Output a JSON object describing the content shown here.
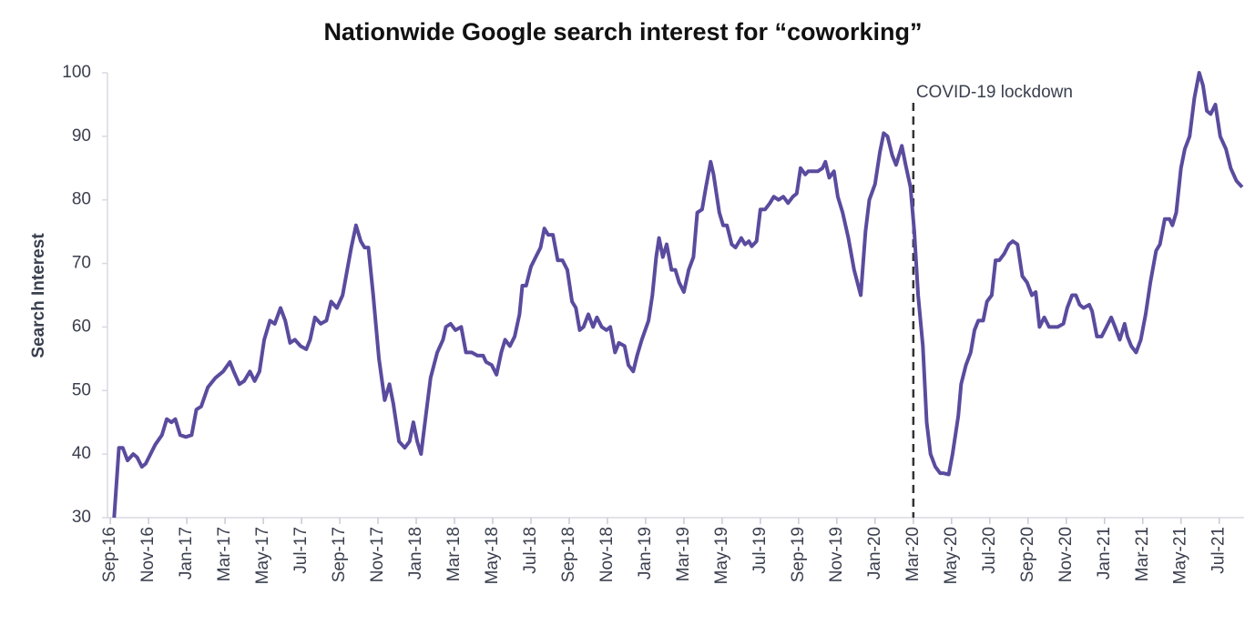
{
  "chart_data": {
    "type": "line",
    "title": "Nationwide Google search interest for “coworking”",
    "ylabel": "Search Interest",
    "annotation": {
      "text": "COVID-19 lockdown",
      "x": 42
    },
    "xlim": [
      -0.15,
      59.3
    ],
    "xticks": [
      {
        "value": 0,
        "label": "Sep-16"
      },
      {
        "value": 2,
        "label": "Nov-16"
      },
      {
        "value": 4,
        "label": "Jan-17"
      },
      {
        "value": 6,
        "label": "Mar-17"
      },
      {
        "value": 8,
        "label": "May-17"
      },
      {
        "value": 10,
        "label": "Jul-17"
      },
      {
        "value": 12,
        "label": "Sep-17"
      },
      {
        "value": 14,
        "label": "Nov-17"
      },
      {
        "value": 16,
        "label": "Jan-18"
      },
      {
        "value": 18,
        "label": "Mar-18"
      },
      {
        "value": 20,
        "label": "May-18"
      },
      {
        "value": 22,
        "label": "Jul-18"
      },
      {
        "value": 24,
        "label": "Sep-18"
      },
      {
        "value": 26,
        "label": "Nov-18"
      },
      {
        "value": 28,
        "label": "Jan-19"
      },
      {
        "value": 30,
        "label": "Mar-19"
      },
      {
        "value": 32,
        "label": "May-19"
      },
      {
        "value": 34,
        "label": "Jul-19"
      },
      {
        "value": 36,
        "label": "Sep-19"
      },
      {
        "value": 38,
        "label": "Nov-19"
      },
      {
        "value": 40,
        "label": "Jan-20"
      },
      {
        "value": 42,
        "label": "Mar-20"
      },
      {
        "value": 44,
        "label": "May-20"
      },
      {
        "value": 46,
        "label": "Jul-20"
      },
      {
        "value": 48,
        "label": "Sep-20"
      },
      {
        "value": 50,
        "label": "Nov-20"
      },
      {
        "value": 52,
        "label": "Jan-21"
      },
      {
        "value": 54,
        "label": "Mar-21"
      },
      {
        "value": 56,
        "label": "May-21"
      },
      {
        "value": 58,
        "label": "Jul-21"
      }
    ],
    "ylim": [
      30,
      100
    ],
    "yticks": [
      30,
      40,
      50,
      60,
      70,
      80,
      90,
      100
    ],
    "x": [
      0.2,
      0.45,
      0.65,
      0.9,
      1.2,
      1.4,
      1.65,
      1.85,
      2.35,
      2.7,
      2.95,
      3.2,
      3.4,
      3.65,
      3.95,
      4.25,
      4.5,
      4.75,
      5.1,
      5.5,
      5.9,
      6.25,
      6.45,
      6.75,
      7.0,
      7.3,
      7.55,
      7.8,
      8.05,
      8.35,
      8.6,
      8.9,
      9.15,
      9.4,
      9.65,
      9.95,
      10.25,
      10.45,
      10.7,
      11.0,
      11.3,
      11.55,
      11.85,
      12.15,
      12.45,
      12.6,
      12.85,
      13.1,
      13.3,
      13.5,
      13.75,
      14.05,
      14.35,
      14.6,
      14.8,
      15.1,
      15.4,
      15.65,
      15.85,
      16.05,
      16.25,
      16.5,
      16.75,
      17.1,
      17.4,
      17.55,
      17.8,
      18.05,
      18.35,
      18.6,
      18.9,
      19.2,
      19.5,
      19.65,
      19.95,
      20.2,
      20.45,
      20.65,
      20.9,
      21.15,
      21.4,
      21.55,
      21.75,
      22.0,
      22.25,
      22.5,
      22.7,
      22.9,
      23.15,
      23.4,
      23.65,
      23.9,
      24.15,
      24.35,
      24.55,
      24.75,
      25.0,
      25.25,
      25.45,
      25.7,
      25.95,
      26.15,
      26.4,
      26.6,
      26.9,
      27.1,
      27.35,
      27.55,
      27.8,
      28.15,
      28.35,
      28.55,
      28.7,
      28.9,
      29.1,
      29.35,
      29.55,
      29.75,
      30.0,
      30.25,
      30.5,
      30.7,
      30.95,
      31.15,
      31.4,
      31.55,
      31.85,
      32.05,
      32.25,
      32.5,
      32.7,
      33.0,
      33.2,
      33.4,
      33.55,
      33.8,
      34.0,
      34.25,
      34.5,
      34.7,
      34.95,
      35.2,
      35.45,
      35.7,
      35.9,
      36.1,
      36.35,
      36.5,
      36.75,
      37.0,
      37.25,
      37.4,
      37.6,
      37.85,
      38.05,
      38.3,
      38.6,
      38.9,
      39.25,
      39.5,
      39.7,
      40.0,
      40.25,
      40.45,
      40.65,
      40.9,
      41.1,
      41.4,
      41.6,
      41.85,
      42.05,
      42.25,
      42.5,
      42.7,
      42.9,
      43.15,
      43.4,
      43.55,
      43.85,
      44.05,
      44.35,
      44.5,
      44.75,
      45.0,
      45.2,
      45.4,
      45.65,
      45.85,
      46.1,
      46.3,
      46.5,
      46.75,
      47.0,
      47.2,
      47.45,
      47.7,
      47.95,
      48.2,
      48.4,
      48.6,
      48.85,
      49.1,
      49.4,
      49.55,
      49.85,
      50.05,
      50.3,
      50.5,
      50.7,
      50.9,
      51.2,
      51.35,
      51.6,
      51.85,
      52.1,
      52.35,
      52.55,
      52.8,
      53.05,
      53.2,
      53.4,
      53.65,
      53.9,
      54.15,
      54.4,
      54.7,
      54.9,
      55.15,
      55.4,
      55.55,
      55.75,
      56.0,
      56.2,
      56.45,
      56.7,
      56.95,
      57.15,
      57.35,
      57.55,
      57.8,
      58.05,
      58.35,
      58.6,
      58.9,
      59.2
    ],
    "series": [
      {
        "name": "coworking",
        "color": "#5b4b9e",
        "values": [
          30,
          41,
          41,
          39,
          40,
          39.5,
          38,
          38.5,
          41.5,
          43,
          45.5,
          45,
          45.5,
          43,
          42.7,
          43,
          47,
          47.5,
          50.5,
          52,
          53,
          54.5,
          53,
          51,
          51.5,
          53,
          51.5,
          53,
          58,
          61,
          60.5,
          63,
          61,
          57.5,
          58,
          57,
          56.5,
          58,
          61.5,
          60.5,
          61,
          64,
          63,
          65,
          70,
          72.5,
          76,
          73.5,
          72.5,
          72.5,
          65,
          55,
          48.5,
          51,
          48,
          42,
          41,
          42,
          45,
          42,
          40,
          46,
          52,
          56,
          58,
          60,
          60.5,
          59.5,
          60,
          56,
          56,
          55.5,
          55.5,
          54.5,
          54,
          52.5,
          56,
          58,
          57,
          58.5,
          62,
          66.5,
          66.5,
          69.5,
          71,
          72.5,
          75.5,
          74.5,
          74.5,
          70.5,
          70.5,
          69,
          64,
          63,
          59.5,
          60,
          62,
          60,
          61.5,
          60,
          59.5,
          60,
          56,
          57.5,
          57,
          54,
          53,
          55.5,
          58,
          61,
          65,
          71,
          74,
          71,
          73,
          69,
          69,
          67,
          65.5,
          69,
          71,
          78,
          78.5,
          82,
          86,
          84,
          78,
          76,
          76,
          73,
          72.5,
          74,
          73,
          73.5,
          72.7,
          73.5,
          78.5,
          78.5,
          79.5,
          80.5,
          80,
          80.5,
          79.5,
          80.5,
          81,
          85,
          84,
          84.5,
          84.5,
          84.5,
          85,
          86,
          83.5,
          84.5,
          80.5,
          78,
          74,
          69,
          65,
          75,
          80,
          82.5,
          87.5,
          90.5,
          90,
          87,
          85.5,
          88.5,
          85.5,
          82,
          75,
          65,
          57,
          45,
          40,
          38,
          37,
          37,
          36.8,
          40,
          46,
          51,
          54,
          56,
          59.5,
          61,
          61,
          64,
          65,
          70.5,
          70.5,
          71.5,
          73,
          73.5,
          73,
          68,
          67,
          65,
          65.5,
          60,
          61.5,
          60,
          60,
          60,
          60.5,
          63,
          65,
          65,
          63.5,
          63,
          63.5,
          62.5,
          58.5,
          58.5,
          60,
          61.5,
          60,
          58,
          60.5,
          58.5,
          57,
          56,
          58,
          62,
          67,
          72,
          73,
          77,
          77,
          76,
          78,
          85,
          88,
          90,
          96,
          100,
          98,
          94,
          93.5,
          95,
          90,
          88,
          85,
          83,
          82
        ]
      }
    ]
  }
}
